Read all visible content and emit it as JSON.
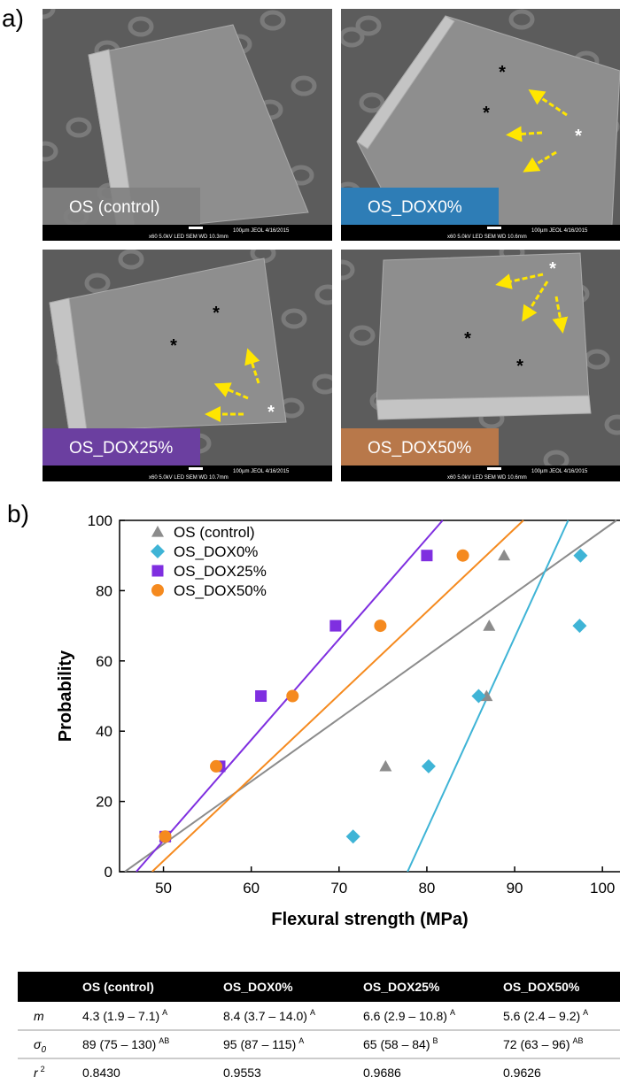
{
  "panel_a": {
    "label": "a)",
    "asterisk": "*",
    "images": [
      {
        "caption": "OS (control)",
        "info_top": "100µm JEOL   4/16/2015",
        "info_bottom": "x60   5.0kV LED   SEM   WD 10.3mm"
      },
      {
        "caption": "OS_DOX0%",
        "info_top": "100µm JEOL   4/16/2015",
        "info_bottom": "x60   5.0kV LED   SEM   WD 10.6mm"
      },
      {
        "caption": "OS_DOX25%",
        "info_top": "100µm JEOL   4/16/2015",
        "info_bottom": "x60   5.0kV LED   SEM   WD 10.7mm"
      },
      {
        "caption": "OS_DOX50%",
        "info_top": "100µm JEOL   4/16/2015",
        "info_bottom": "x60   5.0kV LED   SEM   WD 10.6mm"
      }
    ]
  },
  "panel_b_label": "b)",
  "chart_data": {
    "type": "scatter",
    "x_label": "Flexural strength (MPa)",
    "y_label": "Probability",
    "xlim": [
      45,
      102
    ],
    "ylim": [
      0,
      100
    ],
    "xticks": [
      50,
      60,
      70,
      80,
      90,
      100
    ],
    "yticks": [
      0,
      20,
      40,
      60,
      80,
      100
    ],
    "legend": "upper left",
    "series": [
      {
        "name": "OS (control)",
        "color": "#8c8c8c",
        "marker": "triangle",
        "x": [
          50.2,
          75.3,
          86.8,
          87.1,
          88.8
        ],
        "values": [
          10,
          30,
          50,
          70,
          90
        ],
        "line_x": [
          45.6,
          101.6
        ],
        "line_y": [
          0,
          100
        ]
      },
      {
        "name": "OS_DOX0%",
        "color": "#3fb4d6",
        "marker": "diamond",
        "x": [
          71.6,
          80.2,
          85.9,
          97.4,
          97.5
        ],
        "values": [
          10,
          30,
          50,
          70,
          90
        ],
        "line_x": [
          77.8,
          96.1
        ],
        "line_y": [
          0,
          100
        ]
      },
      {
        "name": "OS_DOX25%",
        "color": "#7f2fe0",
        "marker": "square",
        "x": [
          50.2,
          56.4,
          61.1,
          69.6,
          80
        ],
        "values": [
          10,
          30,
          50,
          70,
          90
        ],
        "line_x": [
          46.9,
          81.8
        ],
        "line_y": [
          0,
          100
        ]
      },
      {
        "name": "OS_DOX50%",
        "color": "#f58a1f",
        "marker": "circle",
        "x": [
          50.2,
          56,
          64.7,
          74.7,
          84.1
        ],
        "values": [
          10,
          30,
          50,
          70,
          90
        ],
        "line_x": [
          48.7,
          91
        ],
        "line_y": [
          0,
          100
        ]
      }
    ]
  },
  "table": {
    "header": [
      "OS (control)",
      "OS_DOX0%",
      "OS_DOX25%",
      "OS_DOX50%"
    ],
    "rows": [
      {
        "label": {
          "text": "m"
        },
        "cells": [
          {
            "text": "4.3 (1.9 – 7.1)",
            "sup": "A"
          },
          {
            "text": "8.4 (3.7 – 14.0)",
            "sup": "A"
          },
          {
            "text": "6.6 (2.9 – 10.8)",
            "sup": "A"
          },
          {
            "text": "5.6 (2.4 – 9.2)",
            "sup": "A"
          }
        ]
      },
      {
        "label": {
          "text": "σ",
          "sub": "0"
        },
        "cells": [
          {
            "text": "89 (75 – 130)",
            "sup": "AB"
          },
          {
            "text": "95 (87 – 115)",
            "sup": "A"
          },
          {
            "text": "65 (58 – 84)",
            "sup": "B"
          },
          {
            "text": "72 (63 – 96)",
            "sup": "AB"
          }
        ]
      },
      {
        "label": {
          "text": "r",
          "sup": "2"
        },
        "cells": [
          {
            "text": "0.8430"
          },
          {
            "text": "0.9553"
          },
          {
            "text": "0.9686"
          },
          {
            "text": "0.9626"
          }
        ]
      }
    ]
  }
}
